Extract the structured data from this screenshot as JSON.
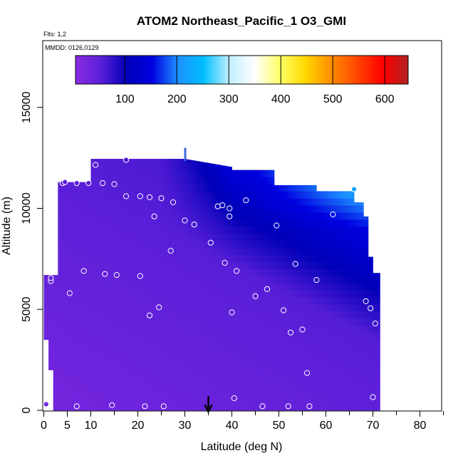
{
  "chart_data": {
    "type": "heatmap",
    "title": "ATOM2 Northeast_Pacific_1 O3_GMI",
    "annotations": [
      "Flts: 1,2",
      "MMDD: 0126,0129"
    ],
    "xlabel": "Latitude (deg N)",
    "ylabel": "Altitude (m)",
    "xlim": [
      0,
      85
    ],
    "ylim": [
      0,
      17500
    ],
    "x_ticks": [
      0,
      5,
      10,
      20,
      30,
      40,
      50,
      60,
      70,
      80
    ],
    "y_ticks": [
      0,
      5000,
      10000,
      15000
    ],
    "colorbar": {
      "range": [
        5,
        645
      ],
      "ticks": [
        100,
        200,
        300,
        400,
        500,
        600
      ],
      "colors": [
        "#8a2be2",
        "#5b1fd8",
        "#0000b8",
        "#0000e0",
        "#1e90ff",
        "#00bfff",
        "#bfefff",
        "#ffffff",
        "#ffff66",
        "#ffd700",
        "#ff8c00",
        "#ff4500",
        "#ff0000",
        "#b22222"
      ]
    },
    "grid": false,
    "arrow_marker_latitude": 35,
    "observations": [
      {
        "lat": 0.5,
        "alt": 300
      },
      {
        "lat": 7,
        "alt": 200
      },
      {
        "lat": 14.5,
        "alt": 250
      },
      {
        "lat": 21.5,
        "alt": 200
      },
      {
        "lat": 25.5,
        "alt": 200
      },
      {
        "lat": 40.5,
        "alt": 600
      },
      {
        "lat": 46.5,
        "alt": 200
      },
      {
        "lat": 52,
        "alt": 200
      },
      {
        "lat": 56.5,
        "alt": 200
      },
      {
        "lat": 70,
        "alt": 650
      },
      {
        "lat": 56,
        "alt": 1850
      },
      {
        "lat": 52.5,
        "alt": 3850
      },
      {
        "lat": 55,
        "alt": 4000
      },
      {
        "lat": 70.5,
        "alt": 4300
      },
      {
        "lat": 22.5,
        "alt": 4700
      },
      {
        "lat": 24.5,
        "alt": 5100
      },
      {
        "lat": 40,
        "alt": 4850
      },
      {
        "lat": 51,
        "alt": 4950
      },
      {
        "lat": 69.5,
        "alt": 5050
      },
      {
        "lat": 5.5,
        "alt": 5800
      },
      {
        "lat": 45,
        "alt": 5650
      },
      {
        "lat": 47.5,
        "alt": 6000
      },
      {
        "lat": 68.5,
        "alt": 5400
      },
      {
        "lat": 1.5,
        "alt": 6400
      },
      {
        "lat": 1.5,
        "alt": 6550
      },
      {
        "lat": 8.5,
        "alt": 6900
      },
      {
        "lat": 13,
        "alt": 6750
      },
      {
        "lat": 15.5,
        "alt": 6700
      },
      {
        "lat": 20.5,
        "alt": 6650
      },
      {
        "lat": 41,
        "alt": 6900
      },
      {
        "lat": 58,
        "alt": 6450
      },
      {
        "lat": 38.5,
        "alt": 7300
      },
      {
        "lat": 53.5,
        "alt": 7250
      },
      {
        "lat": 27,
        "alt": 7900
      },
      {
        "lat": 35.5,
        "alt": 8300
      },
      {
        "lat": 30,
        "alt": 9400
      },
      {
        "lat": 32,
        "alt": 9200
      },
      {
        "lat": 49.5,
        "alt": 9150
      },
      {
        "lat": 23.5,
        "alt": 9600
      },
      {
        "lat": 39.5,
        "alt": 9600
      },
      {
        "lat": 61.5,
        "alt": 9700
      },
      {
        "lat": 37,
        "alt": 10100
      },
      {
        "lat": 38,
        "alt": 10150
      },
      {
        "lat": 39.5,
        "alt": 10000
      },
      {
        "lat": 27.5,
        "alt": 10300
      },
      {
        "lat": 43,
        "alt": 10400
      },
      {
        "lat": 17.5,
        "alt": 10600
      },
      {
        "lat": 20.5,
        "alt": 10600
      },
      {
        "lat": 22.5,
        "alt": 10550
      },
      {
        "lat": 25,
        "alt": 10500
      },
      {
        "lat": 4,
        "alt": 11250
      },
      {
        "lat": 4.5,
        "alt": 11300
      },
      {
        "lat": 7,
        "alt": 11250
      },
      {
        "lat": 9.5,
        "alt": 11250
      },
      {
        "lat": 12.5,
        "alt": 11250
      },
      {
        "lat": 15,
        "alt": 11200
      },
      {
        "lat": 66,
        "alt": 10950
      },
      {
        "lat": 11,
        "alt": 12150
      },
      {
        "lat": 17.5,
        "alt": 12400
      }
    ]
  }
}
